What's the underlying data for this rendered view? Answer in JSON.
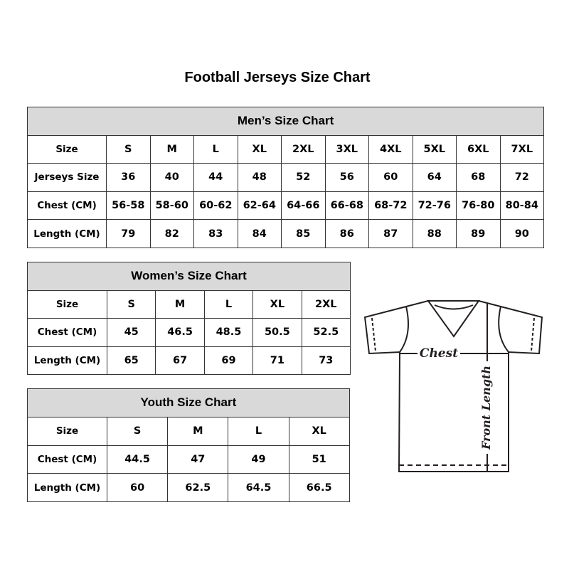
{
  "title": "Football Jerseys Size Chart",
  "men": {
    "header": "Men’s Size Chart",
    "rows": [
      [
        "Size",
        "S",
        "M",
        "L",
        "XL",
        "2XL",
        "3XL",
        "4XL",
        "5XL",
        "6XL",
        "7XL"
      ],
      [
        "Jerseys Size",
        "36",
        "40",
        "44",
        "48",
        "52",
        "56",
        "60",
        "64",
        "68",
        "72"
      ],
      [
        "Chest (CM)",
        "56-58",
        "58-60",
        "60-62",
        "62-64",
        "64-66",
        "66-68",
        "68-72",
        "72-76",
        "76-80",
        "80-84"
      ],
      [
        "Length (CM)",
        "79",
        "82",
        "83",
        "84",
        "85",
        "86",
        "87",
        "88",
        "89",
        "90"
      ]
    ]
  },
  "women": {
    "header": "Women’s Size Chart",
    "rows": [
      [
        "Size",
        "S",
        "M",
        "L",
        "XL",
        "2XL"
      ],
      [
        "Chest (CM)",
        "45",
        "46.5",
        "48.5",
        "50.5",
        "52.5"
      ],
      [
        "Length (CM)",
        "65",
        "67",
        "69",
        "71",
        "73"
      ]
    ]
  },
  "youth": {
    "header": "Youth Size Chart",
    "rows": [
      [
        "Size",
        "S",
        "M",
        "L",
        "XL"
      ],
      [
        "Chest (CM)",
        "44.5",
        "47",
        "49",
        "51"
      ],
      [
        "Length (CM)",
        "60",
        "62.5",
        "64.5",
        "66.5"
      ]
    ]
  },
  "diagram": {
    "chest_label": "Chest",
    "length_label": "Front Length"
  }
}
